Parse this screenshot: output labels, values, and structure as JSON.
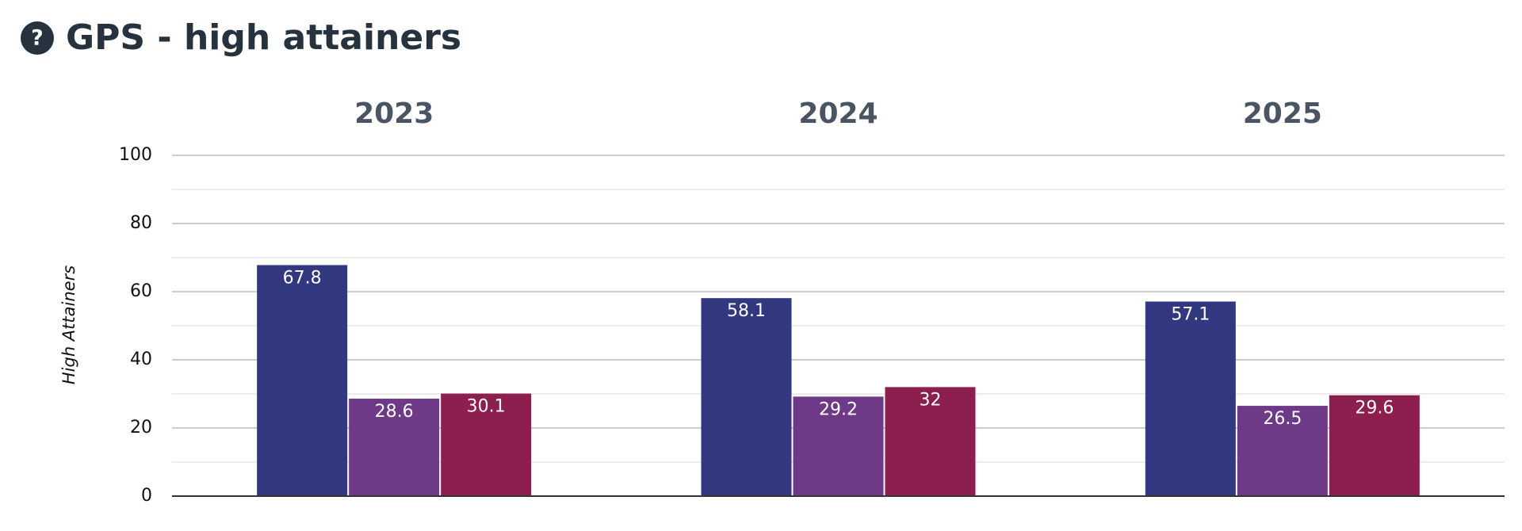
{
  "chart_data": {
    "type": "bar",
    "title": "GPS - high attainers",
    "y_label": "High Attainers",
    "categories": [
      "2023",
      "2024",
      "2025"
    ],
    "series": [
      {
        "color": "#32387f",
        "values": [
          67.8,
          58.1,
          57.1
        ]
      },
      {
        "color": "#6e3a87",
        "values": [
          28.6,
          29.2,
          26.5
        ]
      },
      {
        "color": "#8d1f50",
        "values": [
          30.1,
          32,
          29.6
        ]
      }
    ],
    "ylim": [
      0,
      100
    ],
    "yticks": [
      0,
      20,
      40,
      60,
      80,
      100
    ],
    "grid": true,
    "minor_grid": true
  }
}
